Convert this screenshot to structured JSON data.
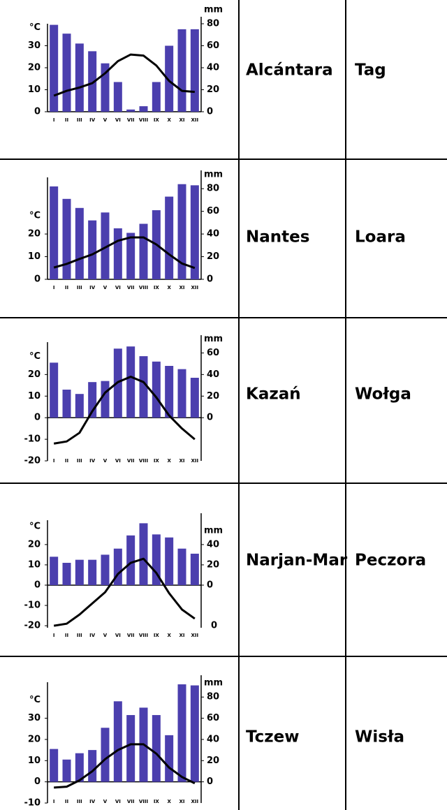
{
  "rows": [
    {
      "chart": {
        "type": "climate",
        "y_label": "°C",
        "y2_label": "mm",
        "categories": [
          "I",
          "II",
          "III",
          "IV",
          "V",
          "VI",
          "VII",
          "VIII",
          "IX",
          "X",
          "XI",
          "XII"
        ],
        "series": [
          {
            "type": "bar",
            "axis": "y2",
            "color": "#4b3fae",
            "values": [
              79,
              71,
              62,
              55,
              44,
              27,
              2,
              5,
              27,
              60,
              75,
              75
            ]
          },
          {
            "type": "line",
            "color": "#000000",
            "values": [
              7.3,
              9.5,
              11,
              13,
              17.5,
              23,
              26,
              25.5,
              21,
              14,
              9.5,
              9
            ]
          }
        ],
        "ylim": [
          0,
          40
        ],
        "yticks": [
          0,
          10,
          20,
          30
        ],
        "y2lim": [
          0,
          80
        ],
        "y2ticks": [
          0,
          20,
          40,
          60,
          80
        ]
      },
      "city": "Alcántara",
      "river": "Tag"
    },
    {
      "chart": {
        "type": "climate",
        "y_label": "°C",
        "y2_label": "mm",
        "categories": [
          "I",
          "II",
          "III",
          "IV",
          "V",
          "VI",
          "VII",
          "VIII",
          "IX",
          "X",
          "XI",
          "XII"
        ],
        "series": [
          {
            "type": "bar",
            "axis": "y2",
            "color": "#4b3fae",
            "values": [
              82,
              71,
              63,
              52,
              59,
              45,
              41,
              49,
              61,
              73,
              84,
              83
            ]
          },
          {
            "type": "line",
            "color": "#000000",
            "values": [
              5.2,
              6.8,
              9,
              11,
              14,
              17,
              18.5,
              18.5,
              15.4,
              11,
              7,
              5
            ]
          }
        ],
        "ylim": [
          0,
          45
        ],
        "yticks": [
          0,
          10,
          20
        ],
        "y2lim": [
          0,
          90
        ],
        "y2ticks": [
          0,
          20,
          40,
          60,
          80
        ]
      },
      "city": "Nantes",
      "river": "Loara"
    },
    {
      "chart": {
        "type": "climate",
        "y_label": "°C",
        "y2_label": "mm",
        "categories": [
          "I",
          "II",
          "III",
          "IV",
          "V",
          "VI",
          "VII",
          "VIII",
          "IX",
          "X",
          "XI",
          "XII"
        ],
        "series": [
          {
            "type": "bar",
            "axis": "y2",
            "color": "#4b3fae",
            "values": [
              51,
              26,
              22,
              33,
              34,
              64,
              66,
              57,
              52,
              48,
              45,
              37
            ]
          },
          {
            "type": "line",
            "color": "#000000",
            "values": [
              -12,
              -11,
              -7,
              3,
              11.6,
              16.5,
              19,
              16.5,
              9.4,
              1,
              -5,
              -10
            ]
          }
        ],
        "ylim": [
          -20,
          35
        ],
        "yticks": [
          -20,
          -10,
          0,
          10,
          20
        ],
        "y2lim": [
          -40,
          70
        ],
        "y2ticks": [
          0,
          20,
          40,
          60
        ]
      },
      "city": "Kazań",
      "river": "Wołga"
    },
    {
      "chart": {
        "type": "climate",
        "y_label": "°C",
        "y2_label": "mm",
        "categories": [
          "I",
          "II",
          "III",
          "IV",
          "V",
          "VI",
          "VII",
          "VIII",
          "IX",
          "X",
          "XI",
          "XII"
        ],
        "series": [
          {
            "type": "bar",
            "axis": "y2",
            "color": "#4b3fae",
            "values": [
              28,
              22,
              25,
              25,
              30,
              36,
              49,
              61,
              50,
              47,
              36,
              31
            ]
          },
          {
            "type": "line",
            "color": "#000000",
            "values": [
              -20,
              -19,
              -14.5,
              -9,
              -3.5,
              5.5,
              11,
              13,
              6,
              -4,
              -12,
              -16.5
            ]
          }
        ],
        "ylim": [
          -21,
          32
        ],
        "yticks": [
          -20,
          -10,
          0,
          10,
          20
        ],
        "y2lim": [
          -42,
          64
        ],
        "y2ticks": [
          0,
          20,
          40
        ],
        "annotation": "0"
      },
      "city": "Narjan-Mar",
      "river": "Peczora"
    },
    {
      "chart": {
        "type": "climate",
        "y_label": "°C",
        "y2_label": "mm",
        "categories": [
          "I",
          "II",
          "III",
          "IV",
          "V",
          "VI",
          "VII",
          "VIII",
          "IX",
          "X",
          "XI",
          "XII"
        ],
        "series": [
          {
            "type": "bar",
            "axis": "y2",
            "color": "#4b3fae",
            "values": [
              31,
              21,
              27,
              30,
              51,
              76,
              63,
              70,
              63,
              44,
              92,
              91
            ]
          },
          {
            "type": "line",
            "color": "#000000",
            "values": [
              -2.7,
              -2.3,
              0.7,
              5,
              10.7,
              15,
              17.7,
              17.7,
              13.3,
              6.7,
              2.3,
              -0.7
            ]
          }
        ],
        "ylim": [
          -10,
          47
        ],
        "yticks": [
          -10,
          0,
          10,
          20,
          30
        ],
        "y2lim": [
          -20,
          94
        ],
        "y2ticks": [
          0,
          20,
          40,
          60,
          80
        ]
      },
      "city": "Tczew",
      "river": "Wisła"
    }
  ]
}
